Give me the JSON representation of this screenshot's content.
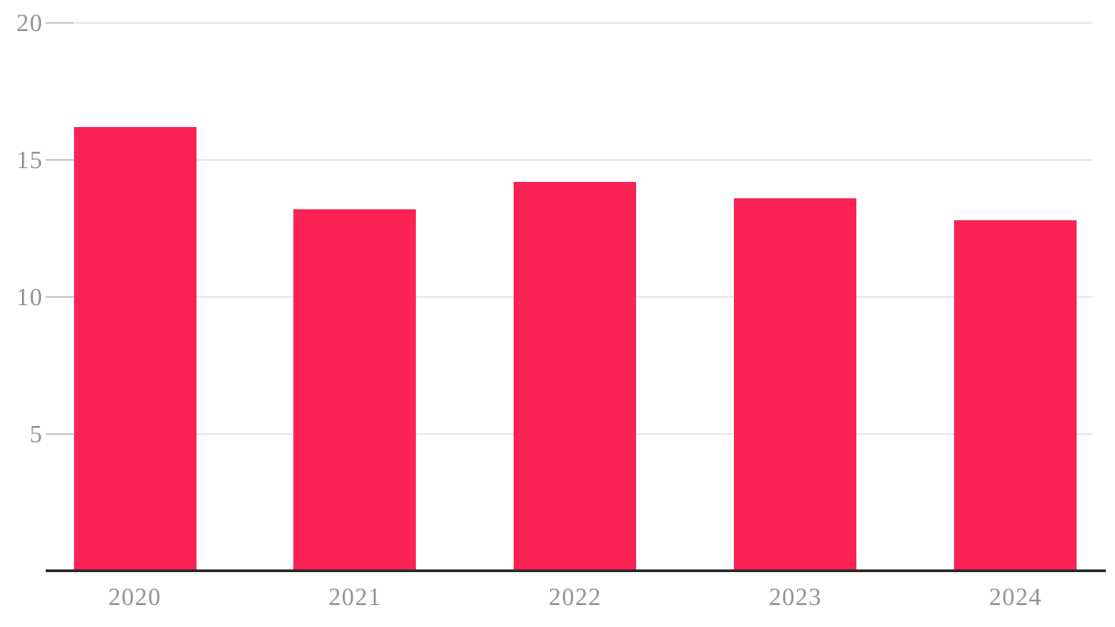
{
  "chart_data": {
    "type": "bar",
    "categories": [
      "2020",
      "2021",
      "2022",
      "2023",
      "2024"
    ],
    "values": [
      16.2,
      13.2,
      14.2,
      13.6,
      12.8
    ],
    "title": "",
    "xlabel": "",
    "ylabel": "",
    "ylim": [
      0,
      20
    ],
    "yticks": [
      5,
      10,
      15,
      20
    ],
    "grid": true,
    "legend": "none",
    "colors": {
      "bar": "#FB2355",
      "axis_line": "#2d2d2d",
      "tick_label": "#949494",
      "gridline": "#e8e8e8",
      "tick_mark": "#cbcbcb",
      "background": "#ffffff"
    }
  }
}
